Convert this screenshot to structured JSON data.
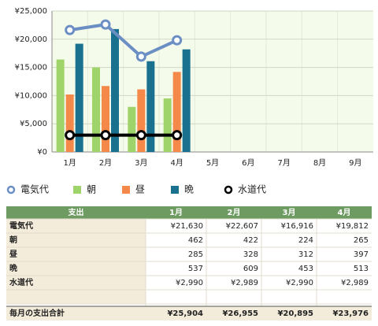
{
  "chart_data": {
    "type": "bar",
    "categories": [
      "1月",
      "2月",
      "3月",
      "4月",
      "5月",
      "6月",
      "7月",
      "8月",
      "9月"
    ],
    "ylim": [
      0,
      25000
    ],
    "yticks": [
      {
        "value": 0,
        "label": "¥0"
      },
      {
        "value": 5000,
        "label": "¥5,000"
      },
      {
        "value": 10000,
        "label": "¥10,000"
      },
      {
        "value": 15000,
        "label": "¥15,000"
      },
      {
        "value": 20000,
        "label": "¥20,000"
      },
      {
        "value": 25000,
        "label": "¥25,000"
      }
    ],
    "grid": true,
    "legend": "bottom",
    "series": [
      {
        "name": "電気代",
        "type": "line",
        "color": "#6b8fc4",
        "values": [
          21630,
          22607,
          16916,
          19812,
          null,
          null,
          null,
          null,
          null
        ]
      },
      {
        "name": "朝",
        "type": "bar",
        "color": "#9fd46a",
        "values": [
          16400,
          15000,
          8000,
          9500,
          null,
          null,
          null,
          null,
          null
        ]
      },
      {
        "name": "昼",
        "type": "bar",
        "color": "#f5894a",
        "values": [
          10200,
          11700,
          11100,
          14200,
          null,
          null,
          null,
          null,
          null
        ]
      },
      {
        "name": "晩",
        "type": "bar",
        "color": "#19708f",
        "values": [
          19200,
          21800,
          16100,
          18200,
          null,
          null,
          null,
          null,
          null
        ]
      },
      {
        "name": "水道代",
        "type": "line",
        "color": "#000000",
        "values": [
          2990,
          2989,
          2990,
          2989,
          null,
          null,
          null,
          null,
          null
        ]
      }
    ]
  },
  "table": {
    "header": [
      "支出",
      "1月",
      "2月",
      "3月",
      "4月"
    ],
    "rows": [
      [
        "電気代",
        "¥21,630",
        "¥22,607",
        "¥16,916",
        "¥19,812"
      ],
      [
        "朝",
        "462",
        "422",
        "224",
        "265"
      ],
      [
        "昼",
        "285",
        "328",
        "312",
        "397"
      ],
      [
        "晩",
        "537",
        "609",
        "453",
        "513"
      ],
      [
        "水道代",
        "¥2,990",
        "¥2,989",
        "¥2,990",
        "¥2,989"
      ]
    ],
    "footer": [
      "毎月の支出合計",
      "¥25,904",
      "¥26,955",
      "¥20,895",
      "¥23,976"
    ]
  }
}
